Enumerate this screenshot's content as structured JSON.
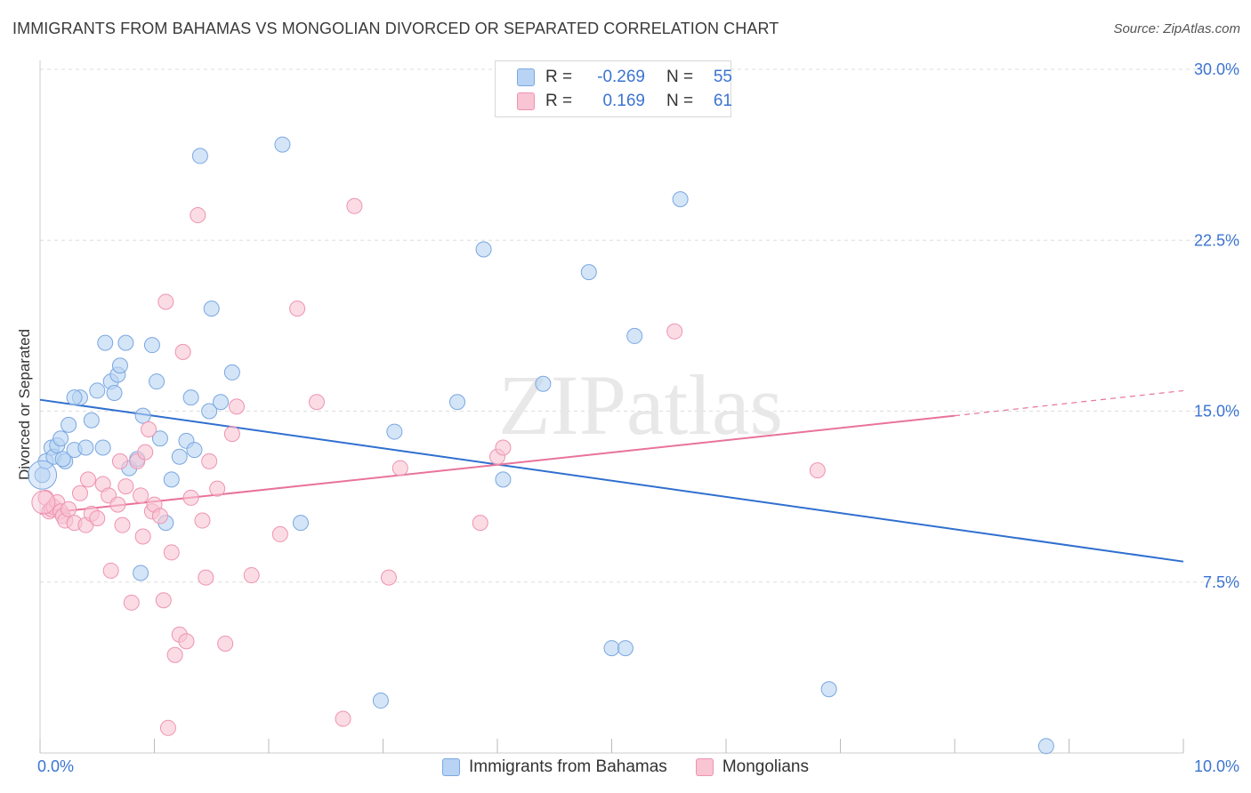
{
  "title": "IMMIGRANTS FROM BAHAMAS VS MONGOLIAN DIVORCED OR SEPARATED CORRELATION CHART",
  "source": "Source: ZipAtlas.com",
  "watermark": "ZIPatlas",
  "colors": {
    "blue_fill": "#b8d3f4",
    "blue_stroke": "#7aa7e0",
    "blue_line": "#2f6fcf",
    "pink_fill": "#f9c4d4",
    "pink_stroke": "#ee93b1",
    "pink_line": "#e8739a",
    "value_text": "#3b74d1"
  },
  "legend": {
    "rows": [
      {
        "label": "R =",
        "r": "-0.269",
        "n_label": "N =",
        "n": "55"
      },
      {
        "label": "R =",
        "r": "0.169",
        "n_label": "N =",
        "n": "61"
      }
    ]
  },
  "bottom_legend": [
    "Immigrants from Bahamas",
    "Mongolians"
  ],
  "chart_data": {
    "type": "scatter",
    "title": "IMMIGRANTS FROM BAHAMAS VS MONGOLIAN DIVORCED OR SEPARATED CORRELATION CHART",
    "xlabel": "",
    "ylabel": "Divorced or Separated",
    "xlim": [
      0,
      10
    ],
    "ylim": [
      0,
      30
    ],
    "x_tick_labels": [
      "0.0%",
      "10.0%"
    ],
    "y_ticks": [
      7.5,
      15,
      22.5,
      30
    ],
    "y_tick_labels": [
      "7.5%",
      "15.0%",
      "22.5%",
      "30.0%"
    ],
    "grid": true,
    "series": [
      {
        "name": "Immigrants from Bahamas",
        "R": -0.269,
        "N": 55,
        "trend": {
          "x": [
            0,
            10
          ],
          "y": [
            15.5,
            8.4
          ]
        },
        "points": [
          [
            0.02,
            12.2
          ],
          [
            0.05,
            12.8
          ],
          [
            0.1,
            13.4
          ],
          [
            0.12,
            13.0
          ],
          [
            0.15,
            13.5
          ],
          [
            0.18,
            13.8
          ],
          [
            0.22,
            12.8
          ],
          [
            0.25,
            14.4
          ],
          [
            0.3,
            13.3
          ],
          [
            0.35,
            15.6
          ],
          [
            0.4,
            13.4
          ],
          [
            0.45,
            14.6
          ],
          [
            0.5,
            15.9
          ],
          [
            0.55,
            13.4
          ],
          [
            0.57,
            18.0
          ],
          [
            0.62,
            16.3
          ],
          [
            0.65,
            15.8
          ],
          [
            0.68,
            16.6
          ],
          [
            0.7,
            17.0
          ],
          [
            0.75,
            18.0
          ],
          [
            0.78,
            12.5
          ],
          [
            0.85,
            12.9
          ],
          [
            0.88,
            7.9
          ],
          [
            0.9,
            14.8
          ],
          [
            0.98,
            17.9
          ],
          [
            1.02,
            16.3
          ],
          [
            1.05,
            13.8
          ],
          [
            1.1,
            10.1
          ],
          [
            1.15,
            12.0
          ],
          [
            1.22,
            13.0
          ],
          [
            1.28,
            13.7
          ],
          [
            1.32,
            15.6
          ],
          [
            1.35,
            13.3
          ],
          [
            1.4,
            26.2
          ],
          [
            1.48,
            15.0
          ],
          [
            1.5,
            19.5
          ],
          [
            1.58,
            15.4
          ],
          [
            1.68,
            16.7
          ],
          [
            2.12,
            26.7
          ],
          [
            2.28,
            10.1
          ],
          [
            2.98,
            2.3
          ],
          [
            3.1,
            14.1
          ],
          [
            3.65,
            15.4
          ],
          [
            3.88,
            22.1
          ],
          [
            4.05,
            12.0
          ],
          [
            4.4,
            16.2
          ],
          [
            4.8,
            21.1
          ],
          [
            5.0,
            4.6
          ],
          [
            5.12,
            4.6
          ],
          [
            5.2,
            18.3
          ],
          [
            5.6,
            24.3
          ],
          [
            6.9,
            2.8
          ],
          [
            8.8,
            0.3
          ],
          [
            0.3,
            15.6
          ],
          [
            0.2,
            12.9
          ]
        ]
      },
      {
        "name": "Mongolians",
        "R": 0.169,
        "N": 61,
        "trend": {
          "x": [
            0,
            8.0
          ],
          "y": [
            10.5,
            14.8
          ]
        },
        "trend_dashed": {
          "x": [
            8.0,
            10.0
          ],
          "y": [
            14.8,
            15.9
          ]
        },
        "points": [
          [
            0.05,
            11.2
          ],
          [
            0.08,
            10.6
          ],
          [
            0.1,
            10.7
          ],
          [
            0.12,
            10.8
          ],
          [
            0.15,
            11.0
          ],
          [
            0.18,
            10.6
          ],
          [
            0.2,
            10.4
          ],
          [
            0.22,
            10.2
          ],
          [
            0.25,
            10.7
          ],
          [
            0.3,
            10.1
          ],
          [
            0.35,
            11.4
          ],
          [
            0.4,
            10.0
          ],
          [
            0.42,
            12.0
          ],
          [
            0.45,
            10.5
          ],
          [
            0.5,
            10.3
          ],
          [
            0.55,
            11.8
          ],
          [
            0.6,
            11.3
          ],
          [
            0.62,
            8.0
          ],
          [
            0.68,
            10.9
          ],
          [
            0.7,
            12.8
          ],
          [
            0.72,
            10.0
          ],
          [
            0.75,
            11.7
          ],
          [
            0.8,
            6.6
          ],
          [
            0.85,
            12.8
          ],
          [
            0.88,
            11.3
          ],
          [
            0.9,
            9.5
          ],
          [
            0.92,
            13.2
          ],
          [
            0.95,
            14.2
          ],
          [
            0.98,
            10.6
          ],
          [
            1.0,
            10.9
          ],
          [
            1.05,
            10.4
          ],
          [
            1.08,
            6.7
          ],
          [
            1.1,
            19.8
          ],
          [
            1.12,
            1.1
          ],
          [
            1.15,
            8.8
          ],
          [
            1.18,
            4.3
          ],
          [
            1.22,
            5.2
          ],
          [
            1.25,
            17.6
          ],
          [
            1.28,
            4.9
          ],
          [
            1.32,
            11.2
          ],
          [
            1.38,
            23.6
          ],
          [
            1.42,
            10.2
          ],
          [
            1.45,
            7.7
          ],
          [
            1.48,
            12.8
          ],
          [
            1.55,
            11.6
          ],
          [
            1.62,
            4.8
          ],
          [
            1.68,
            14.0
          ],
          [
            1.72,
            15.2
          ],
          [
            1.85,
            7.8
          ],
          [
            2.1,
            9.6
          ],
          [
            2.25,
            19.5
          ],
          [
            2.42,
            15.4
          ],
          [
            2.65,
            1.5
          ],
          [
            2.75,
            24.0
          ],
          [
            3.05,
            7.7
          ],
          [
            3.15,
            12.5
          ],
          [
            3.85,
            10.1
          ],
          [
            4.0,
            13.0
          ],
          [
            4.05,
            13.4
          ],
          [
            5.55,
            18.5
          ],
          [
            6.8,
            12.4
          ]
        ]
      }
    ]
  }
}
